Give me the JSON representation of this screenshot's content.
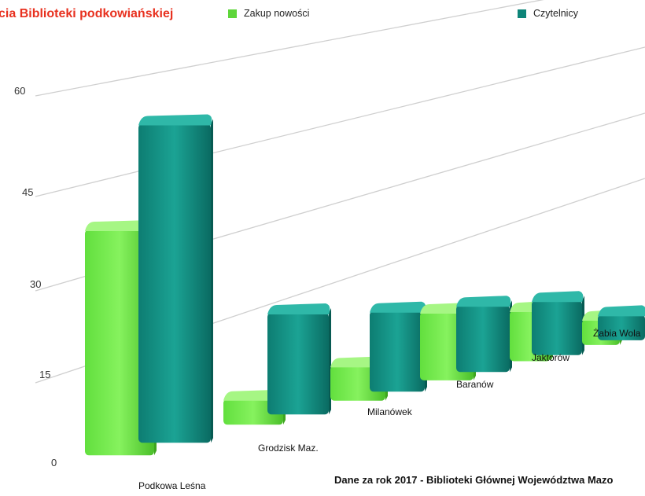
{
  "header": {
    "title": "cia Biblioteki podkowiańskiej",
    "legend": [
      {
        "label": "Zakup nowości",
        "color": "#5ed63a"
      },
      {
        "label": "Czytelnicy",
        "color": "#0e8579"
      }
    ]
  },
  "source_note": "Dane za rok 2017 - Biblioteki Głównej Województwa Mazo",
  "chart_data": {
    "type": "bar",
    "title": "cia Biblioteki podkowiańskiej",
    "xlabel": "",
    "ylabel": "",
    "ylim": [
      0,
      60
    ],
    "yticks": [
      "0",
      "15",
      "30",
      "45",
      "60"
    ],
    "categories": [
      "Podkowa Leśna",
      "Grodzisk Maz.",
      "Milanówek",
      "Baranów",
      "Jaktorów",
      "Żabia Wola"
    ],
    "series": [
      {
        "name": "Zakup nowości",
        "values": [
          37,
          4,
          6,
          13,
          10,
          5
        ]
      },
      {
        "name": "Czytelnicy",
        "values": [
          54,
          18,
          15,
          13,
          11,
          5
        ]
      }
    ],
    "grid": true,
    "legend_position": "top",
    "colors": {
      "Zakup nowości": "#5ed63a",
      "Czytelnicy": "#0e8579"
    }
  }
}
